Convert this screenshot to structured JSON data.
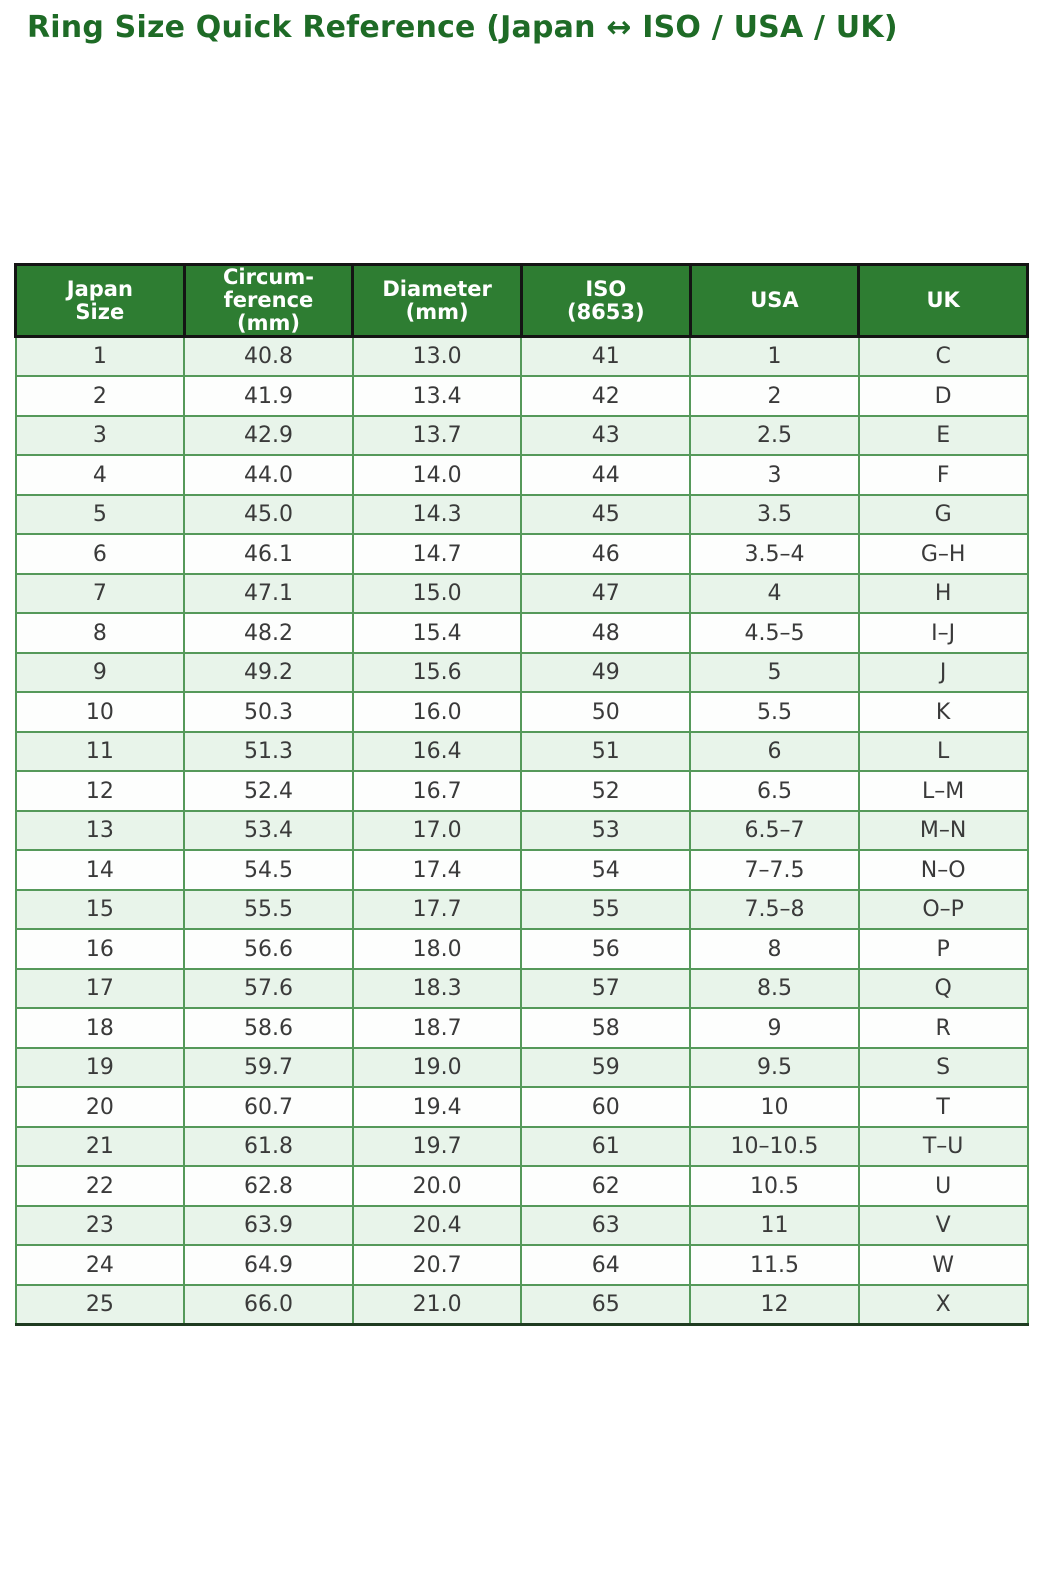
{
  "title": "Ring Size Quick Reference (Japan ↔ ISO / USA / UK)",
  "chart_data": {
    "type": "table",
    "title": "Ring Size Quick Reference (Japan ↔ ISO / USA / UK)",
    "columns": [
      "Japan Size",
      "Circum-ference (mm)",
      "Diameter (mm)",
      "ISO (8653)",
      "USA",
      "UK"
    ],
    "columns_display": [
      "Japan\nSize",
      "Circum-\nference\n(mm)",
      "Diameter\n(mm)",
      "ISO\n(8653)",
      "USA",
      "UK"
    ],
    "rows": [
      [
        "1",
        "40.8",
        "13.0",
        "41",
        "1",
        "C"
      ],
      [
        "2",
        "41.9",
        "13.4",
        "42",
        "2",
        "D"
      ],
      [
        "3",
        "42.9",
        "13.7",
        "43",
        "2.5",
        "E"
      ],
      [
        "4",
        "44.0",
        "14.0",
        "44",
        "3",
        "F"
      ],
      [
        "5",
        "45.0",
        "14.3",
        "45",
        "3.5",
        "G"
      ],
      [
        "6",
        "46.1",
        "14.7",
        "46",
        "3.5–4",
        "G–H"
      ],
      [
        "7",
        "47.1",
        "15.0",
        "47",
        "4",
        "H"
      ],
      [
        "8",
        "48.2",
        "15.4",
        "48",
        "4.5–5",
        "I–J"
      ],
      [
        "9",
        "49.2",
        "15.6",
        "49",
        "5",
        "J"
      ],
      [
        "10",
        "50.3",
        "16.0",
        "50",
        "5.5",
        "K"
      ],
      [
        "11",
        "51.3",
        "16.4",
        "51",
        "6",
        "L"
      ],
      [
        "12",
        "52.4",
        "16.7",
        "52",
        "6.5",
        "L–M"
      ],
      [
        "13",
        "53.4",
        "17.0",
        "53",
        "6.5–7",
        "M–N"
      ],
      [
        "14",
        "54.5",
        "17.4",
        "54",
        "7–7.5",
        "N–O"
      ],
      [
        "15",
        "55.5",
        "17.7",
        "55",
        "7.5–8",
        "O–P"
      ],
      [
        "16",
        "56.6",
        "18.0",
        "56",
        "8",
        "P"
      ],
      [
        "17",
        "57.6",
        "18.3",
        "57",
        "8.5",
        "Q"
      ],
      [
        "18",
        "58.6",
        "18.7",
        "58",
        "9",
        "R"
      ],
      [
        "19",
        "59.7",
        "19.0",
        "59",
        "9.5",
        "S"
      ],
      [
        "20",
        "60.7",
        "19.4",
        "60",
        "10",
        "T"
      ],
      [
        "21",
        "61.8",
        "19.7",
        "61",
        "10–10.5",
        "T–U"
      ],
      [
        "22",
        "62.8",
        "20.0",
        "62",
        "10.5",
        "U"
      ],
      [
        "23",
        "63.9",
        "20.4",
        "63",
        "11",
        "V"
      ],
      [
        "24",
        "64.9",
        "20.7",
        "64",
        "11.5",
        "W"
      ],
      [
        "25",
        "66.0",
        "21.0",
        "65",
        "12",
        "X"
      ]
    ],
    "layout": {
      "grid": true,
      "row_striping": "odd-rows-light-green",
      "legend_position": "none"
    }
  },
  "colors": {
    "title": "#1e6b26",
    "header_bg": "#2e7d32",
    "header_text": "#ffffff",
    "row_alt": "#e8f4ea",
    "border_green": "#55995a",
    "border_dark": "#141414",
    "cell_text": "#3a3a3a"
  }
}
